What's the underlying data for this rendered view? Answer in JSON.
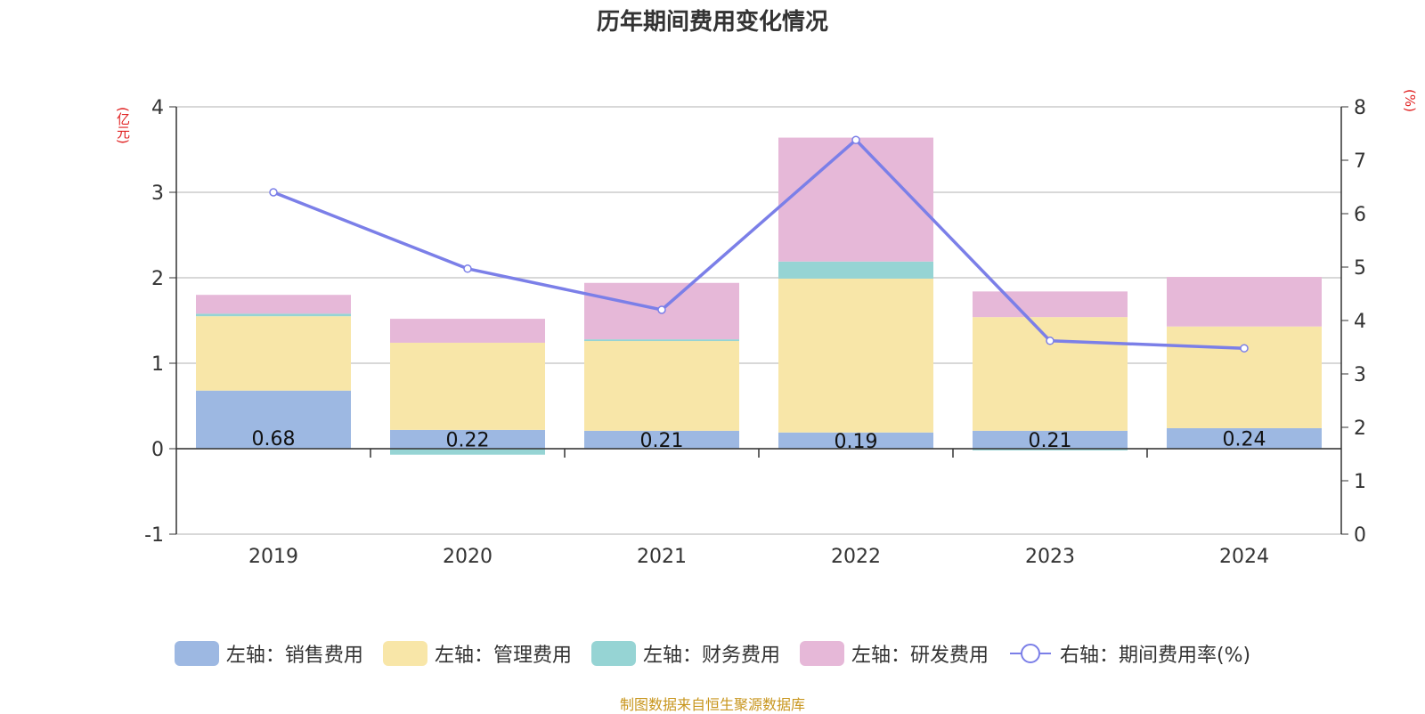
{
  "chart_data": {
    "type": "bar",
    "stacked": true,
    "title": "历年期间费用变化情况",
    "categories": [
      "2019",
      "2020",
      "2021",
      "2022",
      "2023",
      "2024"
    ],
    "left_axis": {
      "unit": "(亿元)",
      "ticks": [
        "4",
        "3",
        "2",
        "1",
        "0",
        "-1"
      ],
      "ylim": [
        -1,
        4
      ]
    },
    "right_axis": {
      "unit": "(%)",
      "ticks": [
        "8",
        "7",
        "6",
        "5",
        "4",
        "3",
        "2",
        "1",
        "0"
      ],
      "ylim": [
        0,
        8
      ]
    },
    "series": [
      {
        "name": "左轴：销售费用",
        "color": "#9db8e2",
        "values": [
          0.68,
          0.22,
          0.21,
          0.19,
          0.21,
          0.24
        ],
        "labels": [
          "0.68",
          "0.22",
          "0.21",
          "0.19",
          "0.21",
          "0.24"
        ]
      },
      {
        "name": "左轴：管理费用",
        "color": "#f8e6a8",
        "values": [
          0.87,
          1.02,
          1.05,
          1.8,
          1.33,
          1.19
        ]
      },
      {
        "name": "左轴：财务费用",
        "color": "#96d4d4",
        "values": [
          0.03,
          -0.07,
          0.02,
          0.2,
          -0.02,
          0.0
        ]
      },
      {
        "name": "左轴：研发费用",
        "color": "#e6b8d8",
        "values": [
          0.22,
          0.28,
          0.66,
          1.45,
          0.3,
          0.58
        ]
      }
    ],
    "line_series": {
      "name": "右轴：期间费用率(%)",
      "color": "#7b7fe8",
      "values": [
        6.4,
        4.97,
        4.2,
        7.38,
        3.62,
        3.48
      ]
    },
    "grid": true,
    "legend_position": "bottom"
  },
  "source_note": "制图数据来自恒生聚源数据库"
}
